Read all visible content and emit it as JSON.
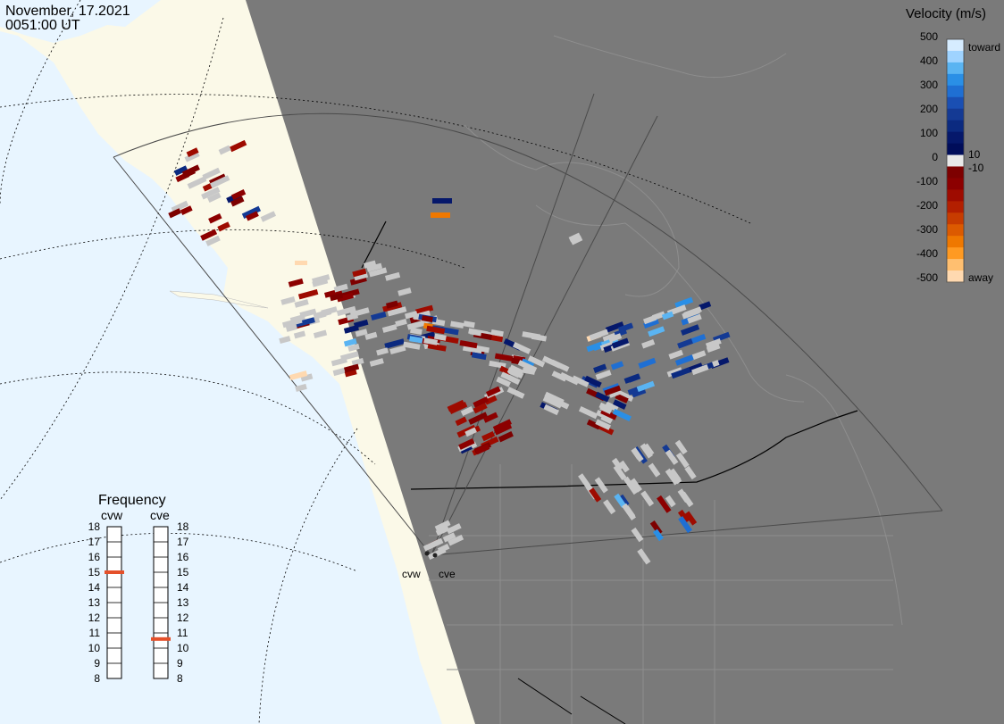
{
  "header": {
    "date": "November, 17.2021",
    "time": "0051:00 UT"
  },
  "velocity_scale": {
    "title": "Velocity (m/s)",
    "ticks": [
      "500",
      "400",
      "300",
      "200",
      "100",
      "0",
      "-100",
      "-200",
      "-300",
      "-400",
      "-500"
    ],
    "toward_label": "toward",
    "away_label": "away",
    "gate_top_label": "10",
    "gate_bottom_label": "-10",
    "colors": [
      "#d6ecff",
      "#9fd3ff",
      "#5ab4f2",
      "#2a8fe6",
      "#1f6fd3",
      "#1a4fb3",
      "#143a94",
      "#0b2a80",
      "#05186b",
      "#000d5a",
      "#e8e8e8",
      "#7d0000",
      "#8c0000",
      "#9e0b00",
      "#b31f00",
      "#c73c00",
      "#dc5a00",
      "#ef7800",
      "#ff9a22",
      "#ffbf70",
      "#ffd9b0"
    ]
  },
  "frequency_panel": {
    "title": "Frequency",
    "radars": [
      {
        "name": "cvw",
        "frequency_mhz": 15,
        "marker_color": "#e4502a"
      },
      {
        "name": "cve",
        "frequency_mhz": 10.6,
        "marker_color": "#e4502a"
      }
    ],
    "ticks": [
      "18",
      "17",
      "16",
      "15",
      "14",
      "13",
      "12",
      "11",
      "10",
      "9",
      "8"
    ]
  },
  "radar_sites": {
    "cvw_label": "cvw",
    "cve_label": "cve"
  },
  "map_colors": {
    "night": "#7a7a7a",
    "ocean_day": "#e8f5ff",
    "land_day": "#fbf9e8",
    "coast_night": "#8e8e8e",
    "fov_line": "#4a4a4a",
    "low_velocity": "#c8c8c8"
  }
}
